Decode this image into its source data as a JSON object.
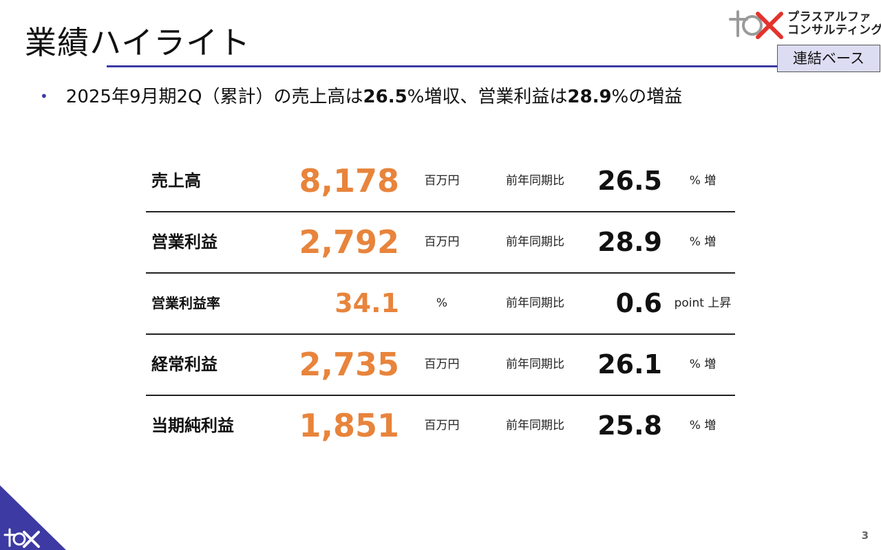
{
  "header": {
    "title": "業績ハイライト",
    "logo_text": "プラスアルファ\nコンサルティング",
    "badge": "連結ベース"
  },
  "summary": {
    "bullet": "•",
    "text_1": "2025年9月期2Q（累計）の売上高は",
    "num_1": "26.5",
    "text_2": "%増収、営業利益は",
    "num_2": "28.9",
    "text_3": "%の増益"
  },
  "metrics": [
    {
      "label": "売上高",
      "value": "8,178",
      "unit": "百万円",
      "yoy_label": "前年同期比",
      "change": "26.5",
      "suffix": "% 増"
    },
    {
      "label": "営業利益",
      "value": "2,792",
      "unit": "百万円",
      "yoy_label": "前年同期比",
      "change": "28.9",
      "suffix": "% 増"
    },
    {
      "label": "営業利益率",
      "value": "34.1",
      "unit": "%",
      "yoy_label": "前年同期比",
      "change": "0.6",
      "suffix": "point 上昇"
    },
    {
      "label": "経常利益",
      "value": "2,735",
      "unit": "百万円",
      "yoy_label": "前年同期比",
      "change": "26.1",
      "suffix": "% 増"
    },
    {
      "label": "当期純利益",
      "value": "1,851",
      "unit": "百万円",
      "yoy_label": "前年同期比",
      "change": "25.8",
      "suffix": "% 増"
    }
  ],
  "footer": {
    "page_number": "3"
  },
  "colors": {
    "accent": "#3d3aa3",
    "value": "#e8843c",
    "logo_red": "#e4322c",
    "logo_gray": "#9a9a9a",
    "badge_bg": "#dcdcf3"
  }
}
